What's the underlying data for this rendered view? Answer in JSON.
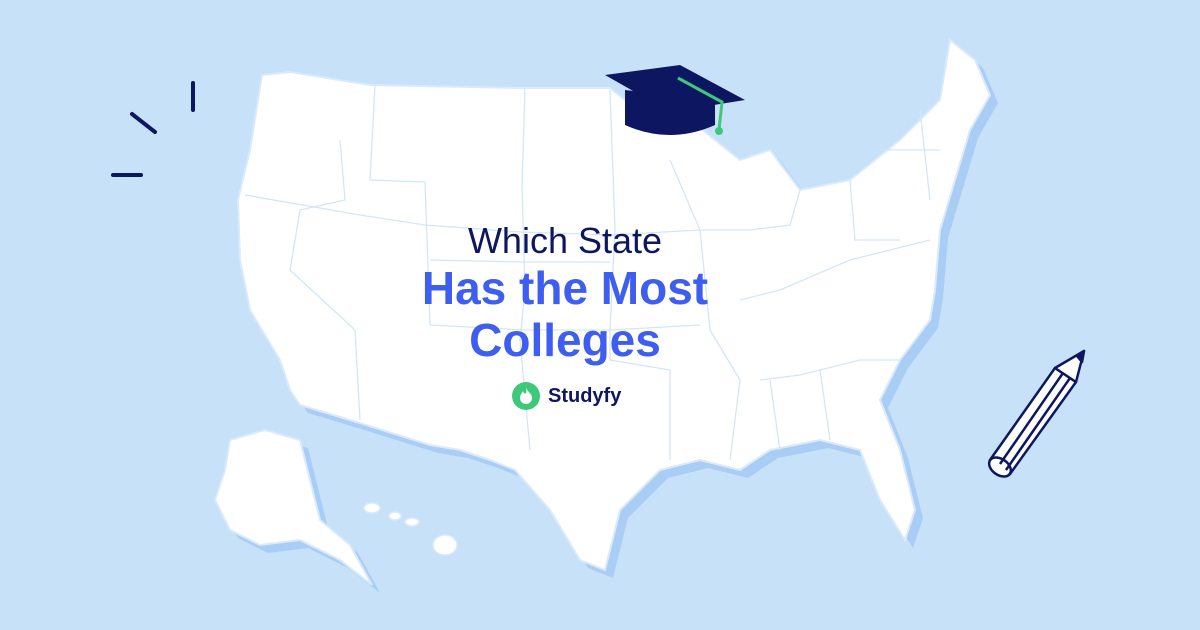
{
  "headline": {
    "line1": "Which State",
    "line2": "Has the Most",
    "line3": "Colleges"
  },
  "brand": {
    "name": "Studyfy",
    "icon": "flame-icon"
  },
  "colors": {
    "background": "#c6e1f8",
    "map_fill": "#ffffff",
    "map_shadow": "#a9cdf5",
    "title_dark": "#0d1660",
    "title_accent": "#3e5ef0",
    "brand_green": "#3ec97a"
  },
  "decorations": [
    "graduation-cap-icon",
    "pencil-icon",
    "burst-lines-icon"
  ]
}
